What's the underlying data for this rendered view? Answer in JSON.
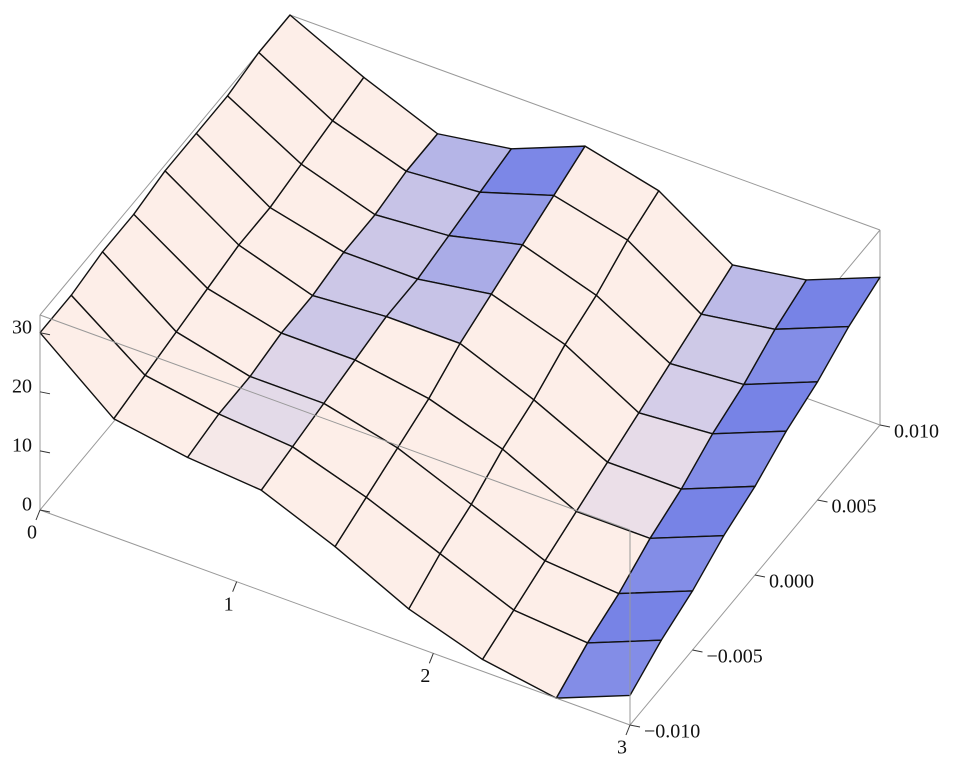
{
  "chart_data": {
    "type": "surface",
    "x": [
      0,
      0.375,
      0.75,
      1.125,
      1.5,
      1.875,
      2.25,
      2.625,
      3
    ],
    "y": [
      -0.01,
      -0.0075,
      -0.005,
      -0.0025,
      0,
      0.0025,
      0.005,
      0.0075,
      0.01
    ],
    "z": [
      [
        30,
        20,
        18,
        17,
        12,
        6,
        2,
        0,
        5
      ],
      [
        30,
        21,
        19,
        18,
        14,
        9,
        4,
        3,
        8
      ],
      [
        31,
        22,
        19,
        19,
        16,
        11,
        6,
        5,
        10
      ],
      [
        31,
        23,
        20,
        20,
        18,
        14,
        8,
        8,
        13
      ],
      [
        32,
        24,
        20,
        21,
        21,
        16,
        10,
        10,
        15
      ],
      [
        32,
        24,
        21,
        21,
        23,
        19,
        12,
        13,
        18
      ],
      [
        32,
        25,
        21,
        22,
        25,
        21,
        14,
        15,
        20
      ],
      [
        33,
        26,
        22,
        23,
        27,
        24,
        16,
        18,
        23
      ],
      [
        33,
        27,
        22,
        24,
        29,
        26,
        18,
        20,
        25
      ]
    ],
    "xlim": [
      0,
      3
    ],
    "ylim": [
      -0.01,
      0.01
    ],
    "zlim": [
      0,
      33
    ],
    "xticks": [
      0,
      1,
      2,
      3
    ],
    "yticks": [
      {
        "value": -0.01,
        "label": "−0.010"
      },
      {
        "value": -0.005,
        "label": "−0.005"
      },
      {
        "value": 0,
        "label": "0.000"
      },
      {
        "value": 0.005,
        "label": "0.005"
      },
      {
        "value": 0.01,
        "label": "0.010"
      }
    ],
    "zticks": [
      0,
      10,
      20,
      30
    ],
    "colors": [
      "#4f63e6",
      "#fdeee8"
    ],
    "mesh_color": "#111111"
  }
}
